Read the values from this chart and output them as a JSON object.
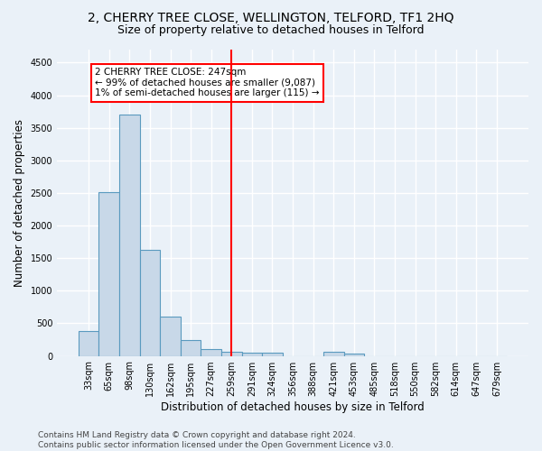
{
  "title": "2, CHERRY TREE CLOSE, WELLINGTON, TELFORD, TF1 2HQ",
  "subtitle": "Size of property relative to detached houses in Telford",
  "xlabel": "Distribution of detached houses by size in Telford",
  "ylabel": "Number of detached properties",
  "bar_labels": [
    "33sqm",
    "65sqm",
    "98sqm",
    "130sqm",
    "162sqm",
    "195sqm",
    "227sqm",
    "259sqm",
    "291sqm",
    "324sqm",
    "356sqm",
    "388sqm",
    "421sqm",
    "453sqm",
    "485sqm",
    "518sqm",
    "550sqm",
    "582sqm",
    "614sqm",
    "647sqm",
    "679sqm"
  ],
  "bar_values": [
    380,
    2510,
    3700,
    1630,
    600,
    240,
    110,
    60,
    50,
    45,
    0,
    0,
    60,
    40,
    0,
    0,
    0,
    0,
    0,
    0,
    0
  ],
  "bar_color": "#c8d8e8",
  "bar_edge_color": "#5a9abf",
  "vline_x_index": 7,
  "vline_color": "red",
  "annotation_text": "2 CHERRY TREE CLOSE: 247sqm\n← 99% of detached houses are smaller (9,087)\n1% of semi-detached houses are larger (115) →",
  "annotation_box_color": "white",
  "annotation_box_edge_color": "red",
  "ylim": [
    0,
    4700
  ],
  "yticks": [
    0,
    500,
    1000,
    1500,
    2000,
    2500,
    3000,
    3500,
    4000,
    4500
  ],
  "footer": "Contains HM Land Registry data © Crown copyright and database right 2024.\nContains public sector information licensed under the Open Government Licence v3.0.",
  "bg_color": "#eaf1f8",
  "grid_color": "white",
  "title_fontsize": 10,
  "subtitle_fontsize": 9,
  "label_fontsize": 8.5,
  "tick_fontsize": 7,
  "footer_fontsize": 6.5,
  "annot_fontsize": 7.5
}
